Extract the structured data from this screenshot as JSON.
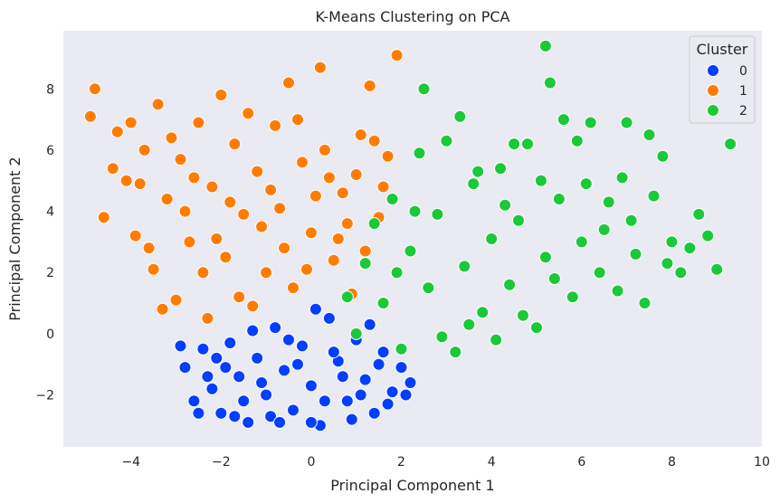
{
  "chart_data": {
    "type": "scatter",
    "title": "K-Means Clustering on PCA",
    "xlabel": "Principal Component 1",
    "ylabel": "Principal Component 2",
    "xlim": [
      -5.5,
      10
    ],
    "ylim": [
      -3.7,
      9.9
    ],
    "xticks": [
      "−4",
      "−2",
      "0",
      "2",
      "4",
      "6",
      "8",
      "10"
    ],
    "xtick_values": [
      -4,
      -2,
      0,
      2,
      4,
      6,
      8,
      10
    ],
    "yticks": [
      "−2",
      "0",
      "2",
      "4",
      "6",
      "8"
    ],
    "ytick_values": [
      -2,
      0,
      2,
      4,
      6,
      8
    ],
    "grid": false,
    "background": "#eaeaf2",
    "legend": {
      "title": "Cluster",
      "placement": "top-right"
    },
    "series": [
      {
        "name": "0",
        "color": "#023eff",
        "points": [
          [
            -2.8,
            -1.1
          ],
          [
            -2.6,
            -2.2
          ],
          [
            -2.4,
            -0.5
          ],
          [
            -2.2,
            -1.8
          ],
          [
            -2.0,
            -2.6
          ],
          [
            -1.8,
            -0.3
          ],
          [
            -1.6,
            -1.4
          ],
          [
            -1.4,
            -2.9
          ],
          [
            -1.2,
            -0.8
          ],
          [
            -1.0,
            -2.0
          ],
          [
            -0.8,
            0.2
          ],
          [
            -0.6,
            -1.2
          ],
          [
            -0.4,
            -2.5
          ],
          [
            -0.2,
            -0.4
          ],
          [
            0.0,
            -1.7
          ],
          [
            0.2,
            -3.0
          ],
          [
            0.4,
            0.5
          ],
          [
            0.6,
            -0.9
          ],
          [
            0.8,
            -2.2
          ],
          [
            1.0,
            -0.2
          ],
          [
            1.2,
            -1.5
          ],
          [
            1.4,
            -2.6
          ],
          [
            1.6,
            -0.6
          ],
          [
            1.8,
            -1.9
          ],
          [
            2.0,
            -1.1
          ],
          [
            2.2,
            -1.6
          ],
          [
            -2.9,
            -0.4
          ],
          [
            -2.5,
            -2.6
          ],
          [
            -1.9,
            -1.1
          ],
          [
            -1.5,
            -2.2
          ],
          [
            -0.9,
            -2.7
          ],
          [
            -0.5,
            -0.2
          ],
          [
            0.1,
            0.8
          ],
          [
            0.3,
            -2.2
          ],
          [
            0.7,
            -1.4
          ],
          [
            1.1,
            -2.0
          ],
          [
            1.5,
            -1.0
          ],
          [
            -1.1,
            -1.6
          ],
          [
            -0.3,
            -1.0
          ],
          [
            0.5,
            -0.6
          ],
          [
            -2.1,
            -0.8
          ],
          [
            -1.3,
            0.1
          ],
          [
            0.9,
            -2.8
          ],
          [
            1.3,
            0.3
          ],
          [
            -0.7,
            -2.9
          ],
          [
            1.7,
            -2.3
          ],
          [
            -1.7,
            -2.7
          ],
          [
            2.1,
            -2.0
          ],
          [
            0.0,
            -2.9
          ],
          [
            -2.3,
            -1.4
          ]
        ]
      },
      {
        "name": "1",
        "color": "#ff7c00",
        "points": [
          [
            -4.9,
            7.1
          ],
          [
            -4.8,
            8.0
          ],
          [
            -4.6,
            3.8
          ],
          [
            -4.3,
            6.6
          ],
          [
            -4.1,
            5.0
          ],
          [
            -3.9,
            3.2
          ],
          [
            -3.7,
            6.0
          ],
          [
            -3.5,
            2.1
          ],
          [
            -3.4,
            7.5
          ],
          [
            -3.2,
            4.4
          ],
          [
            -3.0,
            1.1
          ],
          [
            -2.9,
            5.7
          ],
          [
            -2.7,
            3.0
          ],
          [
            -2.5,
            6.9
          ],
          [
            -2.3,
            0.5
          ],
          [
            -2.2,
            4.8
          ],
          [
            -2.0,
            7.8
          ],
          [
            -1.9,
            2.5
          ],
          [
            -1.7,
            6.2
          ],
          [
            -1.5,
            3.9
          ],
          [
            -1.3,
            0.9
          ],
          [
            -1.2,
            5.3
          ],
          [
            -1.0,
            2.0
          ],
          [
            -0.8,
            6.8
          ],
          [
            -0.7,
            4.1
          ],
          [
            -0.5,
            8.2
          ],
          [
            -0.4,
            1.5
          ],
          [
            -0.2,
            5.6
          ],
          [
            0.0,
            3.3
          ],
          [
            0.2,
            8.7
          ],
          [
            0.3,
            6.0
          ],
          [
            0.5,
            2.4
          ],
          [
            0.7,
            4.6
          ],
          [
            0.9,
            1.3
          ],
          [
            1.1,
            6.5
          ],
          [
            1.3,
            8.1
          ],
          [
            1.5,
            3.8
          ],
          [
            1.7,
            5.8
          ],
          [
            1.9,
            9.1
          ],
          [
            -3.6,
            2.8
          ],
          [
            -3.3,
            0.8
          ],
          [
            -2.8,
            4.0
          ],
          [
            -2.4,
            2.0
          ],
          [
            -1.6,
            1.2
          ],
          [
            -1.1,
            3.5
          ],
          [
            -0.6,
            2.8
          ],
          [
            0.1,
            4.5
          ],
          [
            0.6,
            3.1
          ],
          [
            1.0,
            5.2
          ],
          [
            -4.0,
            6.9
          ],
          [
            -2.6,
            5.1
          ],
          [
            -1.4,
            7.2
          ],
          [
            -0.3,
            7.0
          ],
          [
            0.4,
            5.1
          ],
          [
            1.4,
            6.3
          ],
          [
            -3.8,
            4.9
          ],
          [
            -2.1,
            3.1
          ],
          [
            -0.9,
            4.7
          ],
          [
            0.8,
            3.6
          ],
          [
            1.6,
            4.8
          ],
          [
            -4.4,
            5.4
          ],
          [
            -3.1,
            6.4
          ],
          [
            -1.8,
            4.3
          ],
          [
            -0.1,
            2.1
          ],
          [
            1.2,
            2.7
          ]
        ]
      },
      {
        "name": "2",
        "color": "#1ac938",
        "points": [
          [
            0.8,
            1.2
          ],
          [
            1.0,
            0.0
          ],
          [
            1.2,
            2.3
          ],
          [
            1.4,
            3.6
          ],
          [
            1.6,
            1.0
          ],
          [
            1.8,
            4.4
          ],
          [
            2.0,
            -0.5
          ],
          [
            2.2,
            2.7
          ],
          [
            2.4,
            5.9
          ],
          [
            2.5,
            8.0
          ],
          [
            2.6,
            1.5
          ],
          [
            2.8,
            3.9
          ],
          [
            3.0,
            6.3
          ],
          [
            3.2,
            -0.6
          ],
          [
            3.4,
            2.2
          ],
          [
            3.6,
            4.9
          ],
          [
            3.8,
            0.7
          ],
          [
            4.0,
            3.1
          ],
          [
            4.2,
            5.4
          ],
          [
            4.4,
            1.6
          ],
          [
            4.6,
            3.7
          ],
          [
            4.8,
            6.2
          ],
          [
            5.0,
            0.2
          ],
          [
            5.2,
            2.5
          ],
          [
            5.2,
            9.4
          ],
          [
            5.3,
            8.2
          ],
          [
            5.5,
            4.4
          ],
          [
            5.6,
            7.0
          ],
          [
            5.8,
            1.2
          ],
          [
            6.0,
            3.0
          ],
          [
            6.2,
            6.9
          ],
          [
            6.4,
            2.0
          ],
          [
            6.6,
            4.3
          ],
          [
            6.8,
            1.4
          ],
          [
            7.0,
            6.9
          ],
          [
            7.2,
            2.6
          ],
          [
            7.4,
            1.0
          ],
          [
            7.6,
            4.5
          ],
          [
            7.8,
            5.8
          ],
          [
            8.0,
            3.0
          ],
          [
            8.2,
            2.0
          ],
          [
            8.6,
            3.9
          ],
          [
            8.8,
            3.2
          ],
          [
            9.0,
            2.1
          ],
          [
            9.3,
            6.2
          ],
          [
            3.3,
            7.1
          ],
          [
            4.5,
            6.2
          ],
          [
            5.9,
            6.3
          ],
          [
            7.5,
            6.5
          ],
          [
            6.1,
            4.9
          ],
          [
            2.9,
            -0.1
          ],
          [
            3.5,
            0.3
          ],
          [
            4.1,
            -0.2
          ],
          [
            4.7,
            0.6
          ],
          [
            5.4,
            1.8
          ],
          [
            6.5,
            3.4
          ],
          [
            7.1,
            3.7
          ],
          [
            2.3,
            4.0
          ],
          [
            1.9,
            2.0
          ],
          [
            3.7,
            5.3
          ],
          [
            4.3,
            4.2
          ],
          [
            5.1,
            5.0
          ],
          [
            6.9,
            5.1
          ],
          [
            7.9,
            2.3
          ],
          [
            8.4,
            2.8
          ]
        ]
      }
    ]
  }
}
